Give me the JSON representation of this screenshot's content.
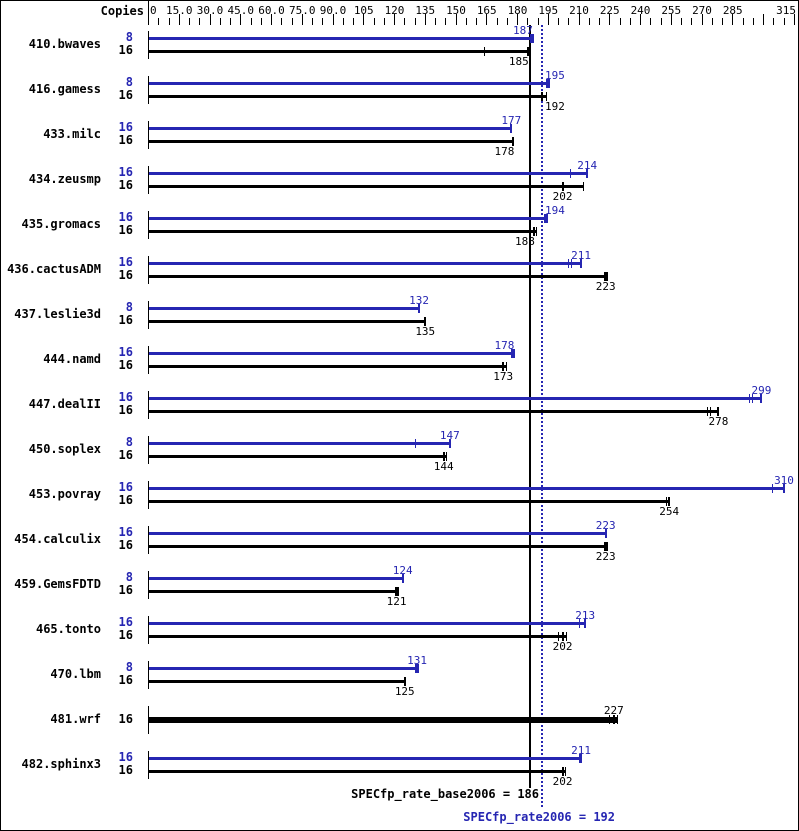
{
  "chart_data": {
    "type": "bar",
    "orientation": "horizontal",
    "copies_header": "Copies",
    "colors": {
      "peak": "#2626b2",
      "base": "#000000"
    },
    "axis": {
      "min": 0,
      "max": 315,
      "major_step": 15,
      "minor_step": 5,
      "tick_labels": [
        {
          "value": 0,
          "label": "0"
        },
        {
          "value": 15,
          "label": "15.0"
        },
        {
          "value": 30,
          "label": "30.0"
        },
        {
          "value": 45,
          "label": "45.0"
        },
        {
          "value": 60,
          "label": "60.0"
        },
        {
          "value": 75,
          "label": "75.0"
        },
        {
          "value": 90,
          "label": "90.0"
        },
        {
          "value": 105,
          "label": "105"
        },
        {
          "value": 120,
          "label": "120"
        },
        {
          "value": 135,
          "label": "135"
        },
        {
          "value": 150,
          "label": "150"
        },
        {
          "value": 165,
          "label": "165"
        },
        {
          "value": 180,
          "label": "180"
        },
        {
          "value": 195,
          "label": "195"
        },
        {
          "value": 210,
          "label": "210"
        },
        {
          "value": 225,
          "label": "225"
        },
        {
          "value": 240,
          "label": "240"
        },
        {
          "value": 255,
          "label": "255"
        },
        {
          "value": 270,
          "label": "270"
        },
        {
          "value": 285,
          "label": "285"
        },
        {
          "value": 315,
          "label": "315"
        }
      ]
    },
    "benchmarks": [
      {
        "name": "410.bwaves",
        "peak": {
          "copies": "8",
          "value": 187,
          "cap": "square",
          "marks": []
        },
        "base": {
          "copies": "16",
          "value": 185,
          "cap": "tick",
          "marks": [
            164
          ]
        }
      },
      {
        "name": "416.gamess",
        "peak": {
          "copies": "8",
          "value": 195,
          "cap": "square",
          "marks": []
        },
        "base": {
          "copies": "16",
          "value": 192,
          "cap": "tick",
          "marks": [
            194
          ]
        }
      },
      {
        "name": "433.milc",
        "peak": {
          "copies": "16",
          "value": 177,
          "cap": "tick",
          "marks": []
        },
        "base": {
          "copies": "16",
          "value": 178,
          "cap": "tick",
          "marks": []
        }
      },
      {
        "name": "434.zeusmp",
        "peak": {
          "copies": "16",
          "value": 214,
          "cap": "tick",
          "marks": [
            206
          ]
        },
        "base": {
          "copies": "16",
          "value": 202,
          "cap": "tick",
          "marks": [
            212
          ]
        }
      },
      {
        "name": "435.gromacs",
        "peak": {
          "copies": "16",
          "value": 194,
          "cap": "square",
          "marks": []
        },
        "base": {
          "copies": "16",
          "value": 188,
          "cap": "tick",
          "marks": [
            189.5
          ]
        }
      },
      {
        "name": "436.cactusADM",
        "peak": {
          "copies": "16",
          "value": 211,
          "cap": "tick",
          "marks": [
            205,
            206.5
          ]
        },
        "base": {
          "copies": "16",
          "value": 223,
          "cap": "square",
          "marks": []
        }
      },
      {
        "name": "437.leslie3d",
        "peak": {
          "copies": "8",
          "value": 132,
          "cap": "tick",
          "marks": []
        },
        "base": {
          "copies": "16",
          "value": 135,
          "cap": "tick",
          "marks": []
        }
      },
      {
        "name": "444.namd",
        "peak": {
          "copies": "16",
          "value": 178,
          "cap": "square",
          "marks": []
        },
        "base": {
          "copies": "16",
          "value": 173,
          "cap": "tick",
          "marks": [
            174.5
          ]
        }
      },
      {
        "name": "447.dealII",
        "peak": {
          "copies": "16",
          "value": 299,
          "cap": "tick",
          "marks": [
            293,
            294.5
          ]
        },
        "base": {
          "copies": "16",
          "value": 278,
          "cap": "tick",
          "marks": [
            272.5,
            274
          ]
        }
      },
      {
        "name": "450.soplex",
        "peak": {
          "copies": "8",
          "value": 147,
          "cap": "tick",
          "marks": [
            130
          ]
        },
        "base": {
          "copies": "16",
          "value": 144,
          "cap": "tick",
          "marks": [
            145.5
          ]
        }
      },
      {
        "name": "453.povray",
        "peak": {
          "copies": "16",
          "value": 310,
          "cap": "tick",
          "marks": [
            304.5
          ]
        },
        "base": {
          "copies": "16",
          "value": 254,
          "cap": "tick",
          "marks": [
            252.5
          ]
        }
      },
      {
        "name": "454.calculix",
        "peak": {
          "copies": "16",
          "value": 223,
          "cap": "tick",
          "marks": []
        },
        "base": {
          "copies": "16",
          "value": 223,
          "cap": "square",
          "marks": []
        }
      },
      {
        "name": "459.GemsFDTD",
        "peak": {
          "copies": "8",
          "value": 124,
          "cap": "tick",
          "marks": []
        },
        "base": {
          "copies": "16",
          "value": 121,
          "cap": "square",
          "marks": []
        }
      },
      {
        "name": "465.tonto",
        "peak": {
          "copies": "16",
          "value": 213,
          "cap": "tick",
          "marks": [
            210
          ]
        },
        "base": {
          "copies": "16",
          "value": 202,
          "cap": "tick",
          "marks": [
            200,
            204
          ]
        }
      },
      {
        "name": "470.lbm",
        "peak": {
          "copies": "8",
          "value": 131,
          "cap": "square",
          "marks": []
        },
        "base": {
          "copies": "16",
          "value": 125,
          "cap": "tick",
          "marks": []
        }
      },
      {
        "name": "481.wrf",
        "single": true,
        "base": {
          "copies": "16",
          "value": 227,
          "cap": "tick",
          "marks": [
            225,
            229
          ]
        }
      },
      {
        "name": "482.sphinx3",
        "peak": {
          "copies": "16",
          "value": 211,
          "cap": "tick",
          "marks": [
            210
          ]
        },
        "base": {
          "copies": "16",
          "value": 202,
          "cap": "tick",
          "marks": [
            203.5
          ]
        }
      }
    ],
    "summary": {
      "base": {
        "label": "SPECfp_rate_base2006 = 186",
        "value": 186
      },
      "peak": {
        "label": "SPECfp_rate2006 = 192",
        "value": 192
      }
    }
  }
}
